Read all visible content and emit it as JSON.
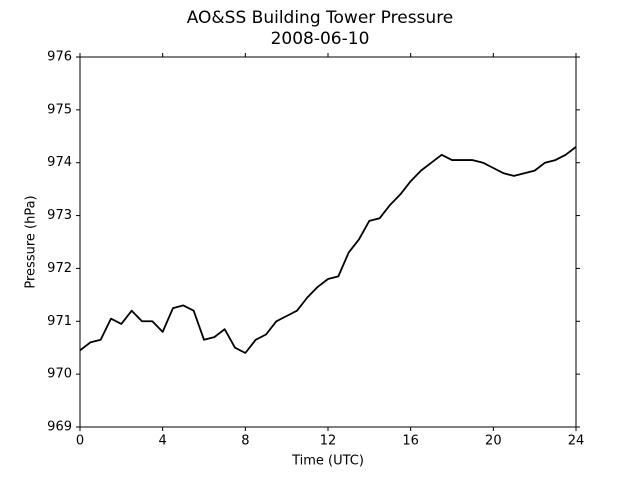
{
  "chart_data": {
    "type": "line",
    "title": "AO&SS Building Tower Pressure",
    "subtitle": "2008-06-10",
    "x_label": "Time (UTC)",
    "y_label": "Pressure (hPa)",
    "x": [
      0,
      0.5,
      1,
      1.5,
      2,
      2.5,
      3,
      3.5,
      4,
      4.5,
      5,
      5.5,
      6,
      6.5,
      7,
      7.5,
      8,
      8.5,
      9,
      9.5,
      10,
      10.5,
      11,
      11.5,
      12,
      12.5,
      13,
      13.5,
      14,
      14.5,
      15,
      15.5,
      16,
      16.5,
      17,
      17.5,
      18,
      18.5,
      19,
      19.5,
      20,
      20.5,
      21,
      21.5,
      22,
      22.5,
      23,
      23.5,
      24
    ],
    "series": [
      {
        "name": "Pressure",
        "color": "#000000",
        "values": [
          970.45,
          970.6,
          970.65,
          971.05,
          970.95,
          971.2,
          971.0,
          971.0,
          970.8,
          971.25,
          971.3,
          971.2,
          970.65,
          970.7,
          970.85,
          970.5,
          970.4,
          970.65,
          970.75,
          971.0,
          971.1,
          971.2,
          971.45,
          971.65,
          971.8,
          971.85,
          972.3,
          972.55,
          972.9,
          972.95,
          973.2,
          973.4,
          973.65,
          973.85,
          974.0,
          974.15,
          974.05,
          974.05,
          974.05,
          974.0,
          973.9,
          973.8,
          973.75,
          973.8,
          973.85,
          974.0,
          974.05,
          974.15,
          974.3
        ]
      }
    ],
    "xlim": [
      0,
      24
    ],
    "xticks": [
      0,
      4,
      8,
      12,
      16,
      20,
      24
    ],
    "ylim": [
      969,
      976
    ],
    "yticks": [
      969,
      970,
      971,
      972,
      973,
      974,
      975,
      976
    ]
  }
}
